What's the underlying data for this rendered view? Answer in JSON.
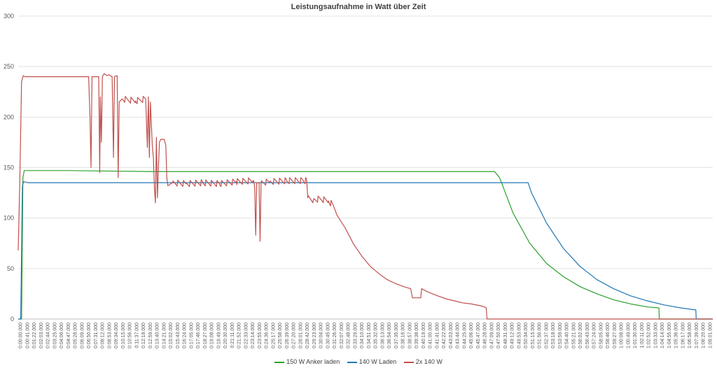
{
  "chart_data": {
    "type": "line",
    "title": "Leistungsaufnahme in Watt über Zeit",
    "xlabel": "",
    "ylabel": "",
    "ylim": [
      0,
      300
    ],
    "yticks": [
      0,
      50,
      100,
      150,
      200,
      250,
      300
    ],
    "xlim_seconds": [
      0,
      4141
    ],
    "x_tick_labels": [
      "0:00:00.000",
      "0:00:41.000",
      "0:01:22.000",
      "0:02:03.000",
      "0:02:44.000",
      "0:03:25.000",
      "0:04:06.000",
      "0:04:47.000",
      "0:05:28.000",
      "0:06:09.000",
      "0:06:50.000",
      "0:07:31.000",
      "0:08:12.000",
      "0:08:53.000",
      "0:09:34.000",
      "0:10:15.000",
      "0:10:56.000",
      "0:11:37.000",
      "0:12:18.000",
      "0:12:59.000",
      "0:13:40.000",
      "0:14:21.000",
      "0:15:02.000",
      "0:15:43.000",
      "0:16:24.000",
      "0:17:05.000",
      "0:17:46.000",
      "0:18:27.000",
      "0:19:08.000",
      "0:19:49.000",
      "0:20:30.000",
      "0:21:11.000",
      "0:21:52.000",
      "0:22:33.000",
      "0:23:14.000",
      "0:23:55.000",
      "0:24:36.000",
      "0:25:17.000",
      "0:25:58.000",
      "0:26:39.000",
      "0:27:20.000",
      "0:28:01.000",
      "0:28:42.000",
      "0:29:23.000",
      "0:30:04.000",
      "0:30:45.000",
      "0:31:26.000",
      "0:32:07.000",
      "0:32:48.000",
      "0:33:29.000",
      "0:34:10.000",
      "0:34:51.000",
      "0:35:32.000",
      "0:36:13.000",
      "0:36:54.000",
      "0:37:35.000",
      "0:38:16.000",
      "0:38:57.000",
      "0:39:38.000",
      "0:40:19.000",
      "0:41:00.000",
      "0:41:41.000",
      "0:42:22.000",
      "0:43:03.000",
      "0:43:44.000",
      "0:44:25.000",
      "0:45:06.000",
      "0:45:47.000",
      "0:46:28.000",
      "0:47:09.000",
      "0:47:50.000",
      "0:48:31.000",
      "0:49:12.000",
      "0:49:53.000",
      "0:50:34.000",
      "0:51:15.000",
      "0:51:56.000",
      "0:52:37.000",
      "0:53:18.000",
      "0:53:59.000",
      "0:54:40.000",
      "0:55:21.000",
      "0:56:02.000",
      "0:56:43.000",
      "0:57:24.000",
      "0:58:05.000",
      "0:58:46.000",
      "0:59:27.000",
      "1:00:08.000",
      "1:00:49.000",
      "1:01:30.000",
      "1:02:11.000",
      "1:02:52.000",
      "1:03:33.000",
      "1:04:14.000",
      "1:04:55.000",
      "1:05:36.000",
      "1:06:17.000",
      "1:06:58.000",
      "1:07:39.000",
      "1:08:20.000",
      "1:09:01.000"
    ],
    "grid": "horizontal",
    "legend_position": "bottom",
    "series": [
      {
        "name": "150 W Anker laden",
        "color": "#2ca02c",
        "points": [
          [
            0,
            0
          ],
          [
            20,
            0
          ],
          [
            28,
            140
          ],
          [
            36,
            147
          ],
          [
            60,
            147
          ],
          [
            300,
            147
          ],
          [
            800,
            146
          ],
          [
            1600,
            146
          ],
          [
            2400,
            146
          ],
          [
            2840,
            146
          ],
          [
            2870,
            140
          ],
          [
            2950,
            105
          ],
          [
            3050,
            75
          ],
          [
            3150,
            55
          ],
          [
            3250,
            42
          ],
          [
            3350,
            32
          ],
          [
            3450,
            25
          ],
          [
            3550,
            19
          ],
          [
            3650,
            15
          ],
          [
            3750,
            12
          ],
          [
            3820,
            11
          ],
          [
            3822,
            0
          ],
          [
            4141,
            0
          ]
        ]
      },
      {
        "name": "140 W Laden",
        "color": "#1f77b4",
        "points": [
          [
            0,
            0
          ],
          [
            15,
            0
          ],
          [
            25,
            132
          ],
          [
            32,
            136
          ],
          [
            60,
            135
          ],
          [
            800,
            135
          ],
          [
            1600,
            135
          ],
          [
            2400,
            135
          ],
          [
            2900,
            135
          ],
          [
            3040,
            135
          ],
          [
            3060,
            125
          ],
          [
            3150,
            95
          ],
          [
            3250,
            70
          ],
          [
            3350,
            52
          ],
          [
            3450,
            39
          ],
          [
            3550,
            30
          ],
          [
            3650,
            23
          ],
          [
            3750,
            18
          ],
          [
            3850,
            14
          ],
          [
            3950,
            11
          ],
          [
            4040,
            9
          ],
          [
            4042,
            0
          ],
          [
            4141,
            0
          ]
        ]
      },
      {
        "name": "2x 140 W",
        "color": "#c0504d",
        "points": [
          [
            0,
            68
          ],
          [
            10,
            140
          ],
          [
            20,
            235
          ],
          [
            30,
            241
          ],
          [
            40,
            240
          ],
          [
            60,
            240
          ],
          [
            200,
            240
          ],
          [
            420,
            240
          ],
          [
            428,
            200
          ],
          [
            434,
            150
          ],
          [
            440,
            240
          ],
          [
            480,
            240
          ],
          [
            486,
            145
          ],
          [
            490,
            220
          ],
          [
            496,
            175
          ],
          [
            502,
            240
          ],
          [
            512,
            243
          ],
          [
            530,
            241
          ],
          [
            540,
            242
          ],
          [
            560,
            240
          ],
          [
            568,
            160
          ],
          [
            574,
            240
          ],
          [
            590,
            241
          ],
          [
            596,
            140
          ],
          [
            602,
            215
          ],
          [
            620,
            218
          ],
          [
            700,
            216
          ],
          [
            760,
            218
          ],
          [
            770,
            170
          ],
          [
            776,
            220
          ],
          [
            782,
            160
          ],
          [
            788,
            215
          ],
          [
            800,
            170
          ],
          [
            806,
            160
          ],
          [
            812,
            130
          ],
          [
            818,
            115
          ],
          [
            824,
            180
          ],
          [
            830,
            120
          ],
          [
            836,
            150
          ],
          [
            842,
            175
          ],
          [
            850,
            178
          ],
          [
            870,
            178
          ],
          [
            880,
            172
          ],
          [
            886,
            140
          ],
          [
            892,
            132
          ],
          [
            920,
            135
          ],
          [
            1000,
            134
          ],
          [
            1100,
            135
          ],
          [
            1200,
            134
          ],
          [
            1300,
            136
          ],
          [
            1400,
            137
          ],
          [
            1410,
            130
          ],
          [
            1416,
            83
          ],
          [
            1422,
            135
          ],
          [
            1436,
            135
          ],
          [
            1442,
            77
          ],
          [
            1448,
            135
          ],
          [
            1500,
            136
          ],
          [
            1600,
            137
          ],
          [
            1700,
            137
          ],
          [
            1720,
            137
          ],
          [
            1726,
            120
          ],
          [
            1760,
            118
          ],
          [
            1800,
            119
          ],
          [
            1850,
            117
          ],
          [
            1880,
            112
          ],
          [
            1900,
            103
          ],
          [
            1950,
            90
          ],
          [
            2000,
            74
          ],
          [
            2050,
            62
          ],
          [
            2100,
            52
          ],
          [
            2150,
            45
          ],
          [
            2200,
            39
          ],
          [
            2250,
            35
          ],
          [
            2300,
            32
          ],
          [
            2340,
            30
          ],
          [
            2350,
            21
          ],
          [
            2400,
            21
          ],
          [
            2405,
            30
          ],
          [
            2440,
            27
          ],
          [
            2500,
            23
          ],
          [
            2550,
            20
          ],
          [
            2600,
            18
          ],
          [
            2650,
            16
          ],
          [
            2700,
            15
          ],
          [
            2760,
            13
          ],
          [
            2780,
            12
          ],
          [
            2790,
            11
          ],
          [
            2795,
            0
          ],
          [
            3000,
            0
          ],
          [
            4141,
            0
          ]
        ],
        "noise_ranges": [
          [
            620,
            760,
            3
          ],
          [
            900,
            1410,
            3
          ],
          [
            1448,
            1720,
            3
          ],
          [
            1726,
            1880,
            3
          ]
        ]
      }
    ]
  }
}
